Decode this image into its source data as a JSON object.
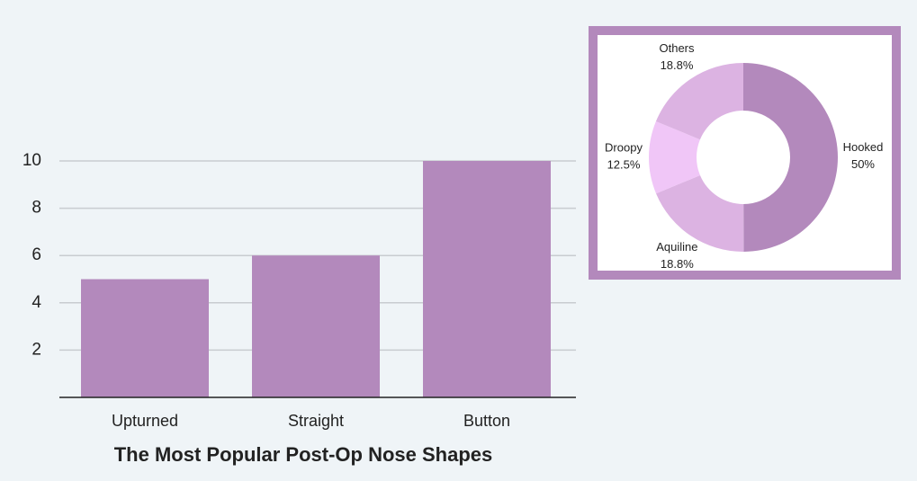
{
  "chart_data": [
    {
      "type": "bar",
      "title": "The Most Popular Post-Op Nose Shapes",
      "categories": [
        "Upturned",
        "Straight",
        "Button"
      ],
      "values": [
        5,
        6,
        10
      ],
      "color": "#b389bc",
      "ylim": [
        0,
        10
      ],
      "yticks": [
        2,
        4,
        6,
        8,
        10
      ],
      "grid": true
    },
    {
      "type": "donut",
      "categories": [
        "Hooked",
        "Aquiline",
        "Droopy",
        "Others"
      ],
      "values": [
        50,
        18.8,
        12.5,
        18.8
      ],
      "value_labels": [
        "50%",
        "18.8%",
        "12.5%",
        "18.8%"
      ],
      "colors": [
        "#b389bc",
        "#dcb3e2",
        "#f0c6f7",
        "#dcb3e2"
      ]
    }
  ]
}
